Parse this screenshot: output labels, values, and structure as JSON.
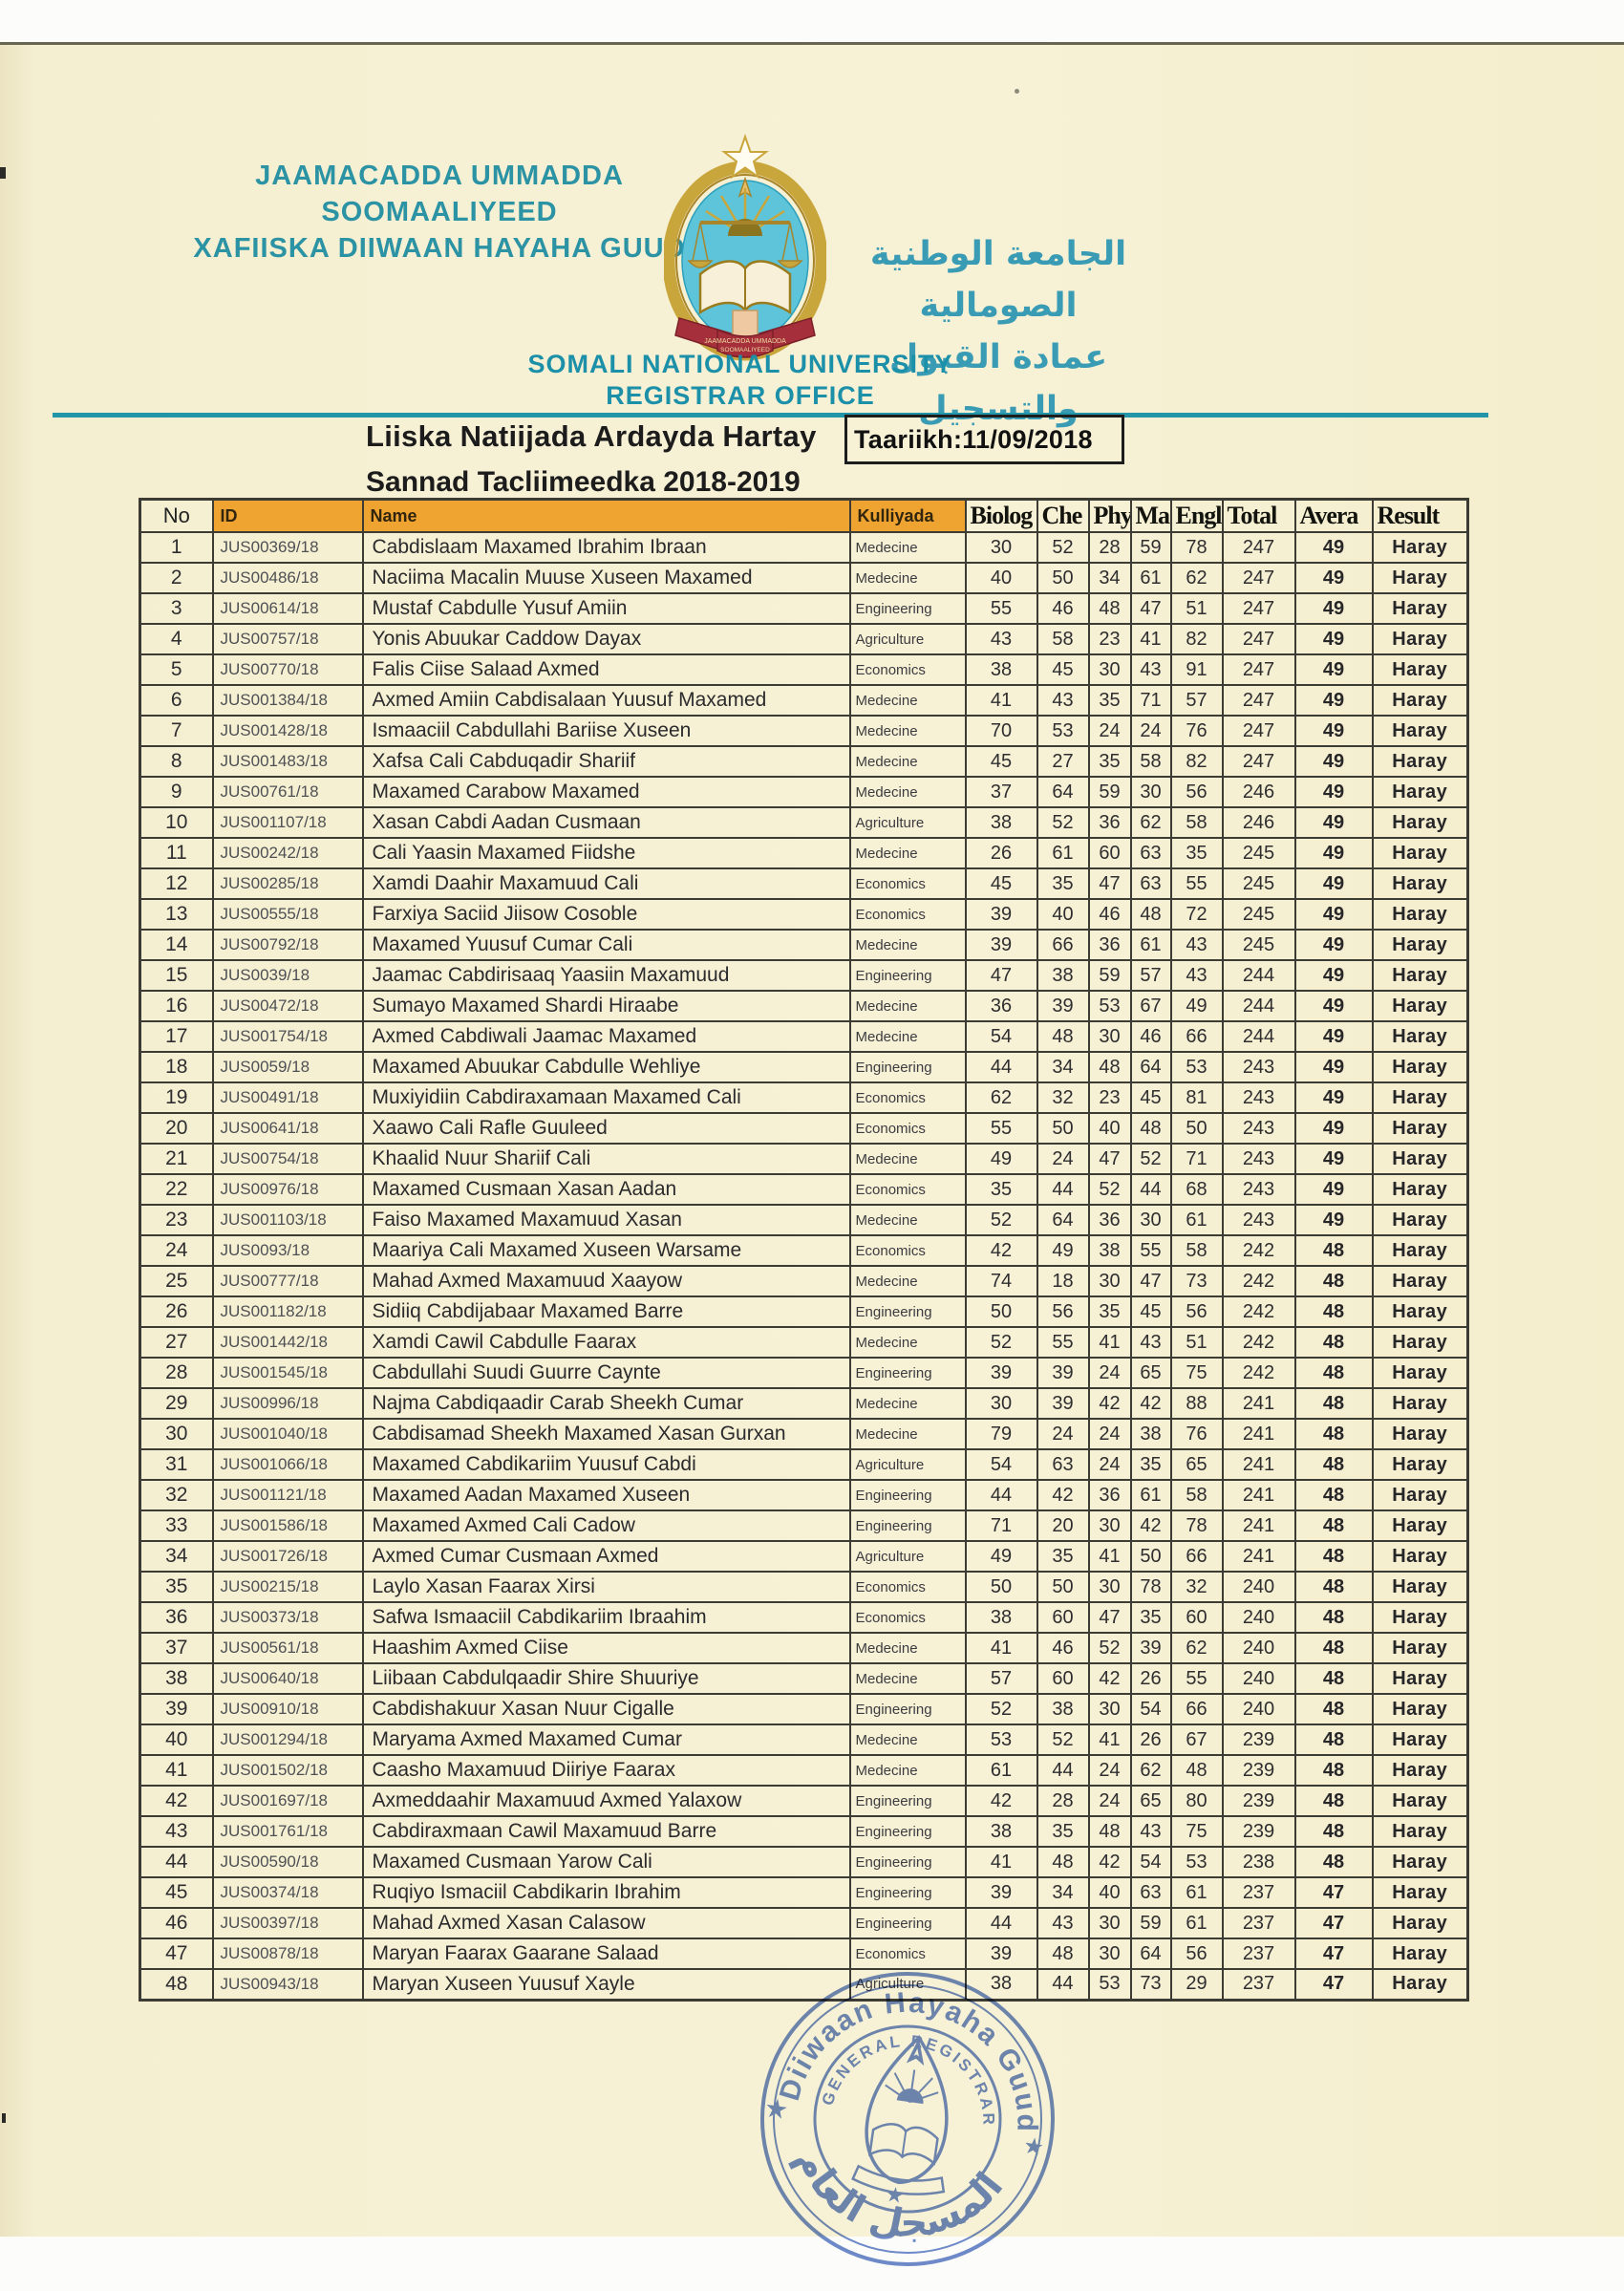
{
  "header": {
    "org_name_somali": [
      "JAAMACADDA UMMADDA",
      "SOOMAALIYEED",
      "XAFIISKA DIIWAAN HAYAHA GUUD"
    ],
    "org_name_arabic": [
      "الجامعة الوطنية الصومالية",
      "عمادة القبول والتسجيل"
    ],
    "org_name_english": [
      "SOMALI NATIONAL UNIVERSITY",
      "REGISTRAR OFFICE"
    ],
    "doc_title": "Liiska Natiijada Ardayda Hartay",
    "date": "Taariikh:11/09/2018",
    "academic_year": "Sannad Tacliimeedka 2018-2019"
  },
  "table": {
    "columns": [
      "No",
      "ID",
      "Name",
      "Kulliyada",
      "Biolog",
      "Che",
      "Phy",
      "Ma",
      "Engl",
      "Total",
      "Avera",
      "Result"
    ],
    "rows": [
      [
        1,
        "JUS00369/18",
        "Cabdislaam Maxamed Ibrahim Ibraan",
        "Medecine",
        30,
        52,
        28,
        59,
        78,
        247,
        49,
        "Haray"
      ],
      [
        2,
        "JUS00486/18",
        "Naciima Macalin Muuse Xuseen Maxamed",
        "Medecine",
        40,
        50,
        34,
        61,
        62,
        247,
        49,
        "Haray"
      ],
      [
        3,
        "JUS00614/18",
        "Mustaf Cabdulle Yusuf Amiin",
        "Engineering",
        55,
        46,
        48,
        47,
        51,
        247,
        49,
        "Haray"
      ],
      [
        4,
        "JUS00757/18",
        "Yonis Abuukar Caddow Dayax",
        "Agriculture",
        43,
        58,
        23,
        41,
        82,
        247,
        49,
        "Haray"
      ],
      [
        5,
        "JUS00770/18",
        "Falis Ciise Salaad Axmed",
        "Economics",
        38,
        45,
        30,
        43,
        91,
        247,
        49,
        "Haray"
      ],
      [
        6,
        "JUS001384/18",
        "Axmed Amiin Cabdisalaan Yuusuf Maxamed",
        "Medecine",
        41,
        43,
        35,
        71,
        57,
        247,
        49,
        "Haray"
      ],
      [
        7,
        "JUS001428/18",
        "Ismaaciil Cabdullahi Bariise Xuseen",
        "Medecine",
        70,
        53,
        24,
        24,
        76,
        247,
        49,
        "Haray"
      ],
      [
        8,
        "JUS001483/18",
        "Xafsa Cali Cabduqadir Shariif",
        "Medecine",
        45,
        27,
        35,
        58,
        82,
        247,
        49,
        "Haray"
      ],
      [
        9,
        "JUS00761/18",
        "Maxamed Carabow Maxamed",
        "Medecine",
        37,
        64,
        59,
        30,
        56,
        246,
        49,
        "Haray"
      ],
      [
        10,
        "JUS001107/18",
        "Xasan Cabdi Aadan Cusmaan",
        "Agriculture",
        38,
        52,
        36,
        62,
        58,
        246,
        49,
        "Haray"
      ],
      [
        11,
        "JUS00242/18",
        "Cali Yaasin Maxamed Fiidshe",
        "Medecine",
        26,
        61,
        60,
        63,
        35,
        245,
        49,
        "Haray"
      ],
      [
        12,
        "JUS00285/18",
        "Xamdi Daahir Maxamuud Cali",
        "Economics",
        45,
        35,
        47,
        63,
        55,
        245,
        49,
        "Haray"
      ],
      [
        13,
        "JUS00555/18",
        "Farxiya Saciid Jiisow Cosoble",
        "Economics",
        39,
        40,
        46,
        48,
        72,
        245,
        49,
        "Haray"
      ],
      [
        14,
        "JUS00792/18",
        "Maxamed Yuusuf Cumar Cali",
        "Medecine",
        39,
        66,
        36,
        61,
        43,
        245,
        49,
        "Haray"
      ],
      [
        15,
        "JUS0039/18",
        "Jaamac Cabdirisaaq Yaasiin Maxamuud",
        "Engineering",
        47,
        38,
        59,
        57,
        43,
        244,
        49,
        "Haray"
      ],
      [
        16,
        "JUS00472/18",
        "Sumayo Maxamed Shardi Hiraabe",
        "Medecine",
        36,
        39,
        53,
        67,
        49,
        244,
        49,
        "Haray"
      ],
      [
        17,
        "JUS001754/18",
        "Axmed Cabdiwali Jaamac Maxamed",
        "Medecine",
        54,
        48,
        30,
        46,
        66,
        244,
        49,
        "Haray"
      ],
      [
        18,
        "JUS0059/18",
        "Maxamed Abuukar Cabdulle Wehliye",
        "Engineering",
        44,
        34,
        48,
        64,
        53,
        243,
        49,
        "Haray"
      ],
      [
        19,
        "JUS00491/18",
        "Muxiyidiin Cabdiraxamaan Maxamed Cali",
        "Economics",
        62,
        32,
        23,
        45,
        81,
        243,
        49,
        "Haray"
      ],
      [
        20,
        "JUS00641/18",
        "Xaawo Cali Rafle Guuleed",
        "Economics",
        55,
        50,
        40,
        48,
        50,
        243,
        49,
        "Haray"
      ],
      [
        21,
        "JUS00754/18",
        "Khaalid Nuur Shariif Cali",
        "Medecine",
        49,
        24,
        47,
        52,
        71,
        243,
        49,
        "Haray"
      ],
      [
        22,
        "JUS00976/18",
        "Maxamed Cusmaan Xasan Aadan",
        "Economics",
        35,
        44,
        52,
        44,
        68,
        243,
        49,
        "Haray"
      ],
      [
        23,
        "JUS001103/18",
        "Faiso Maxamed Maxamuud Xasan",
        "Medecine",
        52,
        64,
        36,
        30,
        61,
        243,
        49,
        "Haray"
      ],
      [
        24,
        "JUS0093/18",
        "Maariya Cali Maxamed Xuseen Warsame",
        "Economics",
        42,
        49,
        38,
        55,
        58,
        242,
        48,
        "Haray"
      ],
      [
        25,
        "JUS00777/18",
        "Mahad Axmed Maxamuud Xaayow",
        "Medecine",
        74,
        18,
        30,
        47,
        73,
        242,
        48,
        "Haray"
      ],
      [
        26,
        "JUS001182/18",
        "Sidiiq Cabdijabaar Maxamed Barre",
        "Engineering",
        50,
        56,
        35,
        45,
        56,
        242,
        48,
        "Haray"
      ],
      [
        27,
        "JUS001442/18",
        "Xamdi Cawil Cabdulle Faarax",
        "Medecine",
        52,
        55,
        41,
        43,
        51,
        242,
        48,
        "Haray"
      ],
      [
        28,
        "JUS001545/18",
        "Cabdullahi Suudi Guurre Caynte",
        "Engineering",
        39,
        39,
        24,
        65,
        75,
        242,
        48,
        "Haray"
      ],
      [
        29,
        "JUS00996/18",
        "Najma Cabdiqaadir Carab Sheekh Cumar",
        "Medecine",
        30,
        39,
        42,
        42,
        88,
        241,
        48,
        "Haray"
      ],
      [
        30,
        "JUS001040/18",
        "Cabdisamad Sheekh Maxamed Xasan Gurxan",
        "Medecine",
        79,
        24,
        24,
        38,
        76,
        241,
        48,
        "Haray"
      ],
      [
        31,
        "JUS001066/18",
        "Maxamed Cabdikariim Yuusuf Cabdi",
        "Agriculture",
        54,
        63,
        24,
        35,
        65,
        241,
        48,
        "Haray"
      ],
      [
        32,
        "JUS001121/18",
        "Maxamed Aadan Maxamed Xuseen",
        "Engineering",
        44,
        42,
        36,
        61,
        58,
        241,
        48,
        "Haray"
      ],
      [
        33,
        "JUS001586/18",
        "Maxamed Axmed Cali Cadow",
        "Engineering",
        71,
        20,
        30,
        42,
        78,
        241,
        48,
        "Haray"
      ],
      [
        34,
        "JUS001726/18",
        "Axmed Cumar Cusmaan Axmed",
        "Agriculture",
        49,
        35,
        41,
        50,
        66,
        241,
        48,
        "Haray"
      ],
      [
        35,
        "JUS00215/18",
        "Laylo Xasan Faarax Xirsi",
        "Economics",
        50,
        50,
        30,
        78,
        32,
        240,
        48,
        "Haray"
      ],
      [
        36,
        "JUS00373/18",
        "Safwa Ismaaciil Cabdikariim Ibraahim",
        "Economics",
        38,
        60,
        47,
        35,
        60,
        240,
        48,
        "Haray"
      ],
      [
        37,
        "JUS00561/18",
        "Haashim Axmed Ciise",
        "Medecine",
        41,
        46,
        52,
        39,
        62,
        240,
        48,
        "Haray"
      ],
      [
        38,
        "JUS00640/18",
        "Liibaan Cabdulqaadir Shire Shuuriye",
        "Medecine",
        57,
        60,
        42,
        26,
        55,
        240,
        48,
        "Haray"
      ],
      [
        39,
        "JUS00910/18",
        "Cabdishakuur Xasan Nuur Cigalle",
        "Engineering",
        52,
        38,
        30,
        54,
        66,
        240,
        48,
        "Haray"
      ],
      [
        40,
        "JUS001294/18",
        "Maryama Axmed Maxamed Cumar",
        "Medecine",
        53,
        52,
        41,
        26,
        67,
        239,
        48,
        "Haray"
      ],
      [
        41,
        "JUS001502/18",
        "Caasho Maxamuud Diiriye Faarax",
        "Medecine",
        61,
        44,
        24,
        62,
        48,
        239,
        48,
        "Haray"
      ],
      [
        42,
        "JUS001697/18",
        "Axmeddaahir Maxamuud Axmed Yalaxow",
        "Engineering",
        42,
        28,
        24,
        65,
        80,
        239,
        48,
        "Haray"
      ],
      [
        43,
        "JUS001761/18",
        "Cabdiraxmaan Cawil Maxamuud Barre",
        "Engineering",
        38,
        35,
        48,
        43,
        75,
        239,
        48,
        "Haray"
      ],
      [
        44,
        "JUS00590/18",
        "Maxamed Cusmaan Yarow Cali",
        "Engineering",
        41,
        48,
        42,
        54,
        53,
        238,
        48,
        "Haray"
      ],
      [
        45,
        "JUS00374/18",
        "Ruqiyo Ismaciil Cabdikarin Ibrahim",
        "Engineering",
        39,
        34,
        40,
        63,
        61,
        237,
        47,
        "Haray"
      ],
      [
        46,
        "JUS00397/18",
        "Mahad Axmed Xasan Calasow",
        "Engineering",
        44,
        43,
        30,
        59,
        61,
        237,
        47,
        "Haray"
      ],
      [
        47,
        "JUS00878/18",
        "Maryan Faarax Gaarane Salaad",
        "Economics",
        39,
        48,
        30,
        64,
        56,
        237,
        47,
        "Haray"
      ],
      [
        48,
        "JUS00943/18",
        "Maryan Xuseen Yuusuf Xayle",
        "Agriculture",
        38,
        44,
        53,
        73,
        29,
        237,
        47,
        "Haray"
      ]
    ]
  },
  "stamp": {
    "ring_text": "Diiwaan Hayaha Guud",
    "inner_ring_text": "GENERAL REGISTRAR",
    "arabic_text": "المسجل العام",
    "star": "★"
  },
  "colors": {
    "teal": "#2395a8",
    "header_orange": "#efa431",
    "stamp_blue": "#4d6fc0",
    "logo_gold": "#c9a63c",
    "logo_blue": "#5ec4da",
    "banner_red": "#a5303c",
    "page_cream": "#f6f0d3"
  }
}
